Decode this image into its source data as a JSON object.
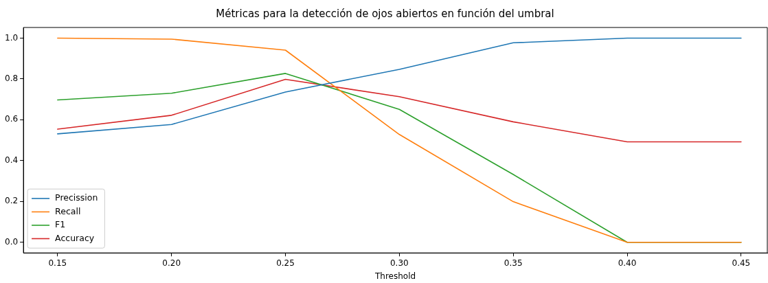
{
  "chart_data": {
    "type": "line",
    "title": "Métricas para la detección de ojos abiertos en función del umbral",
    "xlabel": "Threshold",
    "x": [
      0.15,
      0.2,
      0.25,
      0.3,
      0.35,
      0.4,
      0.45
    ],
    "xlim": [
      0.135,
      0.4615
    ],
    "xticks": [
      {
        "value": 0.15,
        "label": "0.15"
      },
      {
        "value": 0.2,
        "label": "0.20"
      },
      {
        "value": 0.25,
        "label": "0.25"
      },
      {
        "value": 0.3,
        "label": "0.30"
      },
      {
        "value": 0.35,
        "label": "0.35"
      },
      {
        "value": 0.4,
        "label": "0.40"
      },
      {
        "value": 0.45,
        "label": "0.45"
      }
    ],
    "ylim": [
      -0.052,
      1.052
    ],
    "yticks": [
      {
        "value": 0,
        "label": "0.0"
      },
      {
        "value": 0.2,
        "label": "0.2"
      },
      {
        "value": 0.4,
        "label": "0.4"
      },
      {
        "value": 0.6,
        "label": "0.6"
      },
      {
        "value": 0.8,
        "label": "0.8"
      },
      {
        "value": 1,
        "label": "1.0"
      }
    ],
    "series": [
      {
        "name": "Precission",
        "color": "#1f77b4",
        "values": [
          0.531,
          0.577,
          0.736,
          0.847,
          0.977,
          1.0,
          1.0
        ]
      },
      {
        "name": "Recall",
        "color": "#ff7f0e",
        "values": [
          1.0,
          0.995,
          0.941,
          0.528,
          0.199,
          0.0,
          0.0
        ]
      },
      {
        "name": "F1",
        "color": "#2ca02c",
        "values": [
          0.697,
          0.73,
          0.827,
          0.651,
          0.332,
          0.0,
          0.0
        ]
      },
      {
        "name": "Accuracy",
        "color": "#d62728",
        "values": [
          0.554,
          0.622,
          0.798,
          0.713,
          0.59,
          0.492,
          0.492
        ]
      }
    ],
    "legend": "bottom left",
    "grid": false,
    "marker": "none",
    "line_style": "solid"
  }
}
